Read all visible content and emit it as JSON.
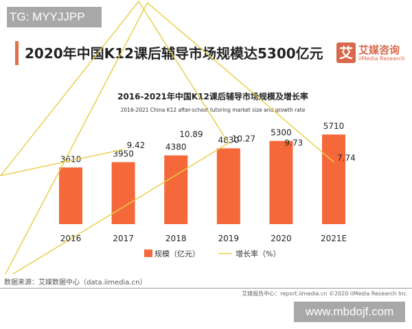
{
  "watermark_top": "TG: MYYJJPP",
  "watermark_bottom": "www.mbdojf.com",
  "header": {
    "title": "2020年中国K12课后辅导市场规模达5300亿元"
  },
  "logo": {
    "glyph": "艾",
    "cn": "艾媒咨询",
    "en": "iiMedia Research"
  },
  "footer": {
    "source": "数据来源：艾媒数据中心（data.iimedia.cn）",
    "copyright": "艾媒报告中心：report.iimedia.cn   ©2020 iiMedia Research Inc"
  },
  "chart_data": {
    "type": "bar+line",
    "title": "2016-2021年中国K12课后辅导市场规模及增长率",
    "subtitle": "2016-2021 China K12 after-school tutoring market size and growth rate",
    "categories": [
      "2016",
      "2017",
      "2018",
      "2019",
      "2020",
      "2021E"
    ],
    "series": [
      {
        "name": "规模（亿元）",
        "type": "bar",
        "color": "#f4683a",
        "values": [
          3610,
          3950,
          4380,
          4830,
          5300,
          5710
        ],
        "labels": [
          "3610",
          "3950",
          "4380",
          "4830",
          "5300",
          "5710"
        ]
      },
      {
        "name": "增长率（%）",
        "type": "line",
        "color": "#e8cf4a",
        "values": [
          null,
          9.42,
          10.89,
          10.27,
          9.73,
          7.74
        ],
        "labels": [
          "",
          "9.42",
          "10.89",
          "10.27",
          "9.73",
          "7.74"
        ]
      }
    ],
    "legend_position": "bottom",
    "grid": false
  }
}
